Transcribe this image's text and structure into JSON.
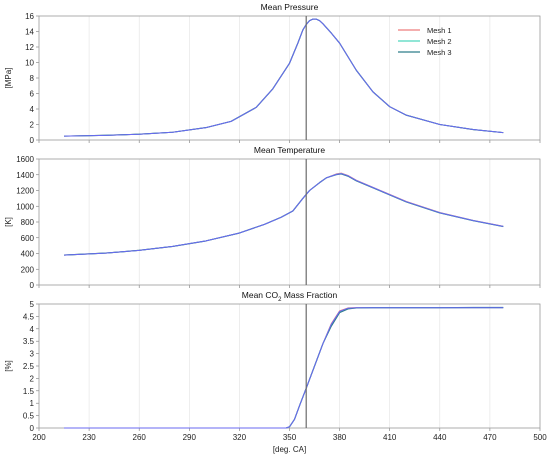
{
  "chart_data": [
    {
      "type": "line",
      "title": "Mean Pressure",
      "ylabel": "[MPa]",
      "xlabel": "",
      "xlim": [
        200,
        500
      ],
      "ylim": [
        0,
        16
      ],
      "xticks": [
        200,
        230,
        260,
        290,
        320,
        350,
        380,
        410,
        440,
        470,
        500
      ],
      "yticks": [
        0,
        2,
        4,
        6,
        8,
        10,
        12,
        14,
        16
      ],
      "ytick_labels": [
        "0",
        "2",
        "4",
        "6",
        "8",
        "10",
        "12",
        "14",
        "16"
      ],
      "show_xtick_labels": false,
      "grid_x": true,
      "grid_y": false,
      "vline": 360,
      "legend": {
        "position": "top-right",
        "entries": [
          "Mesh 1",
          "Mesh 2",
          "Mesh 3"
        ]
      },
      "series": [
        {
          "name": "Mesh 1",
          "color": "#ee7d7d",
          "x": [
            215,
            240,
            260,
            280,
            300,
            315,
            330,
            340,
            350,
            355,
            358,
            360,
            362,
            364,
            366,
            368,
            370,
            375,
            380,
            390,
            400,
            410,
            420,
            440,
            460,
            478
          ],
          "y": [
            0.5,
            0.6,
            0.75,
            1.0,
            1.6,
            2.4,
            4.2,
            6.6,
            9.9,
            12.5,
            14.2,
            14.9,
            15.4,
            15.6,
            15.6,
            15.4,
            15.0,
            13.8,
            12.5,
            9.0,
            6.2,
            4.3,
            3.2,
            2.0,
            1.35,
            0.95
          ]
        },
        {
          "name": "Mesh 2",
          "color": "#4fd6bd",
          "x": [
            215,
            240,
            260,
            280,
            300,
            315,
            330,
            340,
            350,
            355,
            358,
            360,
            362,
            364,
            366,
            368,
            370,
            375,
            380,
            390,
            400,
            410,
            420,
            440,
            460,
            478
          ],
          "y": [
            0.5,
            0.6,
            0.75,
            1.0,
            1.6,
            2.4,
            4.2,
            6.6,
            9.9,
            12.5,
            14.2,
            14.9,
            15.4,
            15.6,
            15.6,
            15.4,
            15.0,
            13.8,
            12.5,
            9.0,
            6.2,
            4.3,
            3.2,
            2.0,
            1.35,
            0.95
          ]
        },
        {
          "name": "Mesh 3",
          "color": "#2e7d8a",
          "x": [
            215,
            240,
            260,
            280,
            300,
            315,
            330,
            340,
            350,
            355,
            358,
            360,
            362,
            364,
            366,
            368,
            370,
            375,
            380,
            390,
            400,
            410,
            420,
            440,
            460,
            478
          ],
          "y": [
            0.5,
            0.6,
            0.75,
            1.0,
            1.6,
            2.4,
            4.2,
            6.6,
            9.9,
            12.5,
            14.2,
            14.9,
            15.4,
            15.6,
            15.6,
            15.4,
            15.0,
            13.8,
            12.5,
            9.0,
            6.2,
            4.3,
            3.2,
            2.0,
            1.35,
            0.95
          ]
        },
        {
          "name": "",
          "color": "#6a6af2",
          "x": [
            215,
            240,
            260,
            280,
            300,
            315,
            330,
            340,
            350,
            355,
            358,
            360,
            362,
            364,
            366,
            368,
            370,
            375,
            380,
            390,
            400,
            410,
            420,
            440,
            460,
            478
          ],
          "y": [
            0.5,
            0.6,
            0.75,
            1.0,
            1.6,
            2.4,
            4.2,
            6.6,
            9.9,
            12.5,
            14.2,
            14.9,
            15.4,
            15.6,
            15.6,
            15.4,
            15.0,
            13.8,
            12.5,
            9.0,
            6.2,
            4.3,
            3.2,
            2.0,
            1.35,
            0.95
          ]
        }
      ]
    },
    {
      "type": "line",
      "title": "Mean Temperature",
      "ylabel": "[K]",
      "xlabel": "",
      "xlim": [
        200,
        500
      ],
      "ylim": [
        0,
        1600
      ],
      "xticks": [
        200,
        230,
        260,
        290,
        320,
        350,
        380,
        410,
        440,
        470,
        500
      ],
      "yticks": [
        0,
        200,
        400,
        600,
        800,
        1000,
        1200,
        1400,
        1600
      ],
      "ytick_labels": [
        "0",
        "200",
        "400",
        "600",
        "800",
        "1000",
        "1200",
        "1400",
        "1600"
      ],
      "show_xtick_labels": false,
      "grid_x": true,
      "grid_y": false,
      "vline": 360,
      "series": [
        {
          "name": "Mesh 1",
          "color": "#ee7d7d",
          "x": [
            215,
            240,
            260,
            280,
            300,
            320,
            335,
            345,
            352,
            358,
            362,
            368,
            372,
            378,
            381,
            385,
            390,
            400,
            420,
            440,
            460,
            478
          ],
          "y": [
            380,
            405,
            440,
            490,
            560,
            660,
            770,
            860,
            940,
            1100,
            1200,
            1300,
            1360,
            1410,
            1420,
            1390,
            1330,
            1240,
            1060,
            920,
            820,
            745
          ]
        },
        {
          "name": "Mesh 2",
          "color": "#4fd6bd",
          "x": [
            215,
            240,
            260,
            280,
            300,
            320,
            335,
            345,
            352,
            358,
            362,
            368,
            372,
            378,
            381,
            385,
            390,
            400,
            420,
            440,
            460,
            478
          ],
          "y": [
            380,
            405,
            440,
            490,
            560,
            660,
            770,
            860,
            940,
            1100,
            1200,
            1300,
            1360,
            1405,
            1415,
            1385,
            1325,
            1236,
            1056,
            917,
            818,
            743
          ]
        },
        {
          "name": "Mesh 3",
          "color": "#2e7d8a",
          "x": [
            215,
            240,
            260,
            280,
            300,
            320,
            335,
            345,
            352,
            358,
            362,
            368,
            372,
            378,
            381,
            385,
            390,
            400,
            420,
            440,
            460,
            478
          ],
          "y": [
            380,
            405,
            440,
            490,
            560,
            660,
            770,
            860,
            940,
            1100,
            1200,
            1300,
            1360,
            1400,
            1410,
            1382,
            1322,
            1233,
            1054,
            915,
            816,
            742
          ]
        },
        {
          "name": "",
          "color": "#6a6af2",
          "x": [
            215,
            240,
            260,
            280,
            300,
            320,
            335,
            345,
            352,
            358,
            362,
            368,
            372,
            378,
            381,
            385,
            390,
            400,
            420,
            440,
            460,
            478
          ],
          "y": [
            380,
            405,
            440,
            490,
            560,
            660,
            770,
            860,
            940,
            1100,
            1200,
            1300,
            1360,
            1405,
            1415,
            1388,
            1328,
            1238,
            1058,
            918,
            819,
            744
          ]
        }
      ]
    },
    {
      "type": "line",
      "title": "Mean CO2 Mass Fraction",
      "title_parts": [
        "Mean CO",
        "2",
        " Mass Fraction"
      ],
      "ylabel": "[%]",
      "xlabel": "[deg. CA]",
      "xlim": [
        200,
        500
      ],
      "ylim": [
        0,
        5
      ],
      "xticks": [
        200,
        230,
        260,
        290,
        320,
        350,
        380,
        410,
        440,
        470,
        500
      ],
      "yticks": [
        0,
        0.5,
        1,
        1.5,
        2,
        2.5,
        3,
        3.5,
        4,
        4.5,
        5
      ],
      "ytick_labels": [
        "0",
        "0.5",
        "1",
        "1.5",
        "2",
        "2.5",
        "3",
        "3.5",
        "4",
        "4.5",
        "5"
      ],
      "show_xtick_labels": true,
      "grid_x": true,
      "grid_y": false,
      "vline": 360,
      "series": [
        {
          "name": "Mesh 1",
          "color": "#ee7d7d",
          "x": [
            215,
            300,
            348,
            350,
            353,
            356,
            360,
            365,
            370,
            375,
            380,
            385,
            390,
            400,
            420,
            440,
            460,
            478
          ],
          "y": [
            0,
            0,
            0,
            0.05,
            0.35,
            0.9,
            1.6,
            2.5,
            3.4,
            4.2,
            4.72,
            4.84,
            4.85,
            4.85,
            4.85,
            4.85,
            4.85,
            4.85
          ]
        },
        {
          "name": "Mesh 2",
          "color": "#4fd6bd",
          "x": [
            215,
            300,
            348,
            350,
            353,
            356,
            360,
            365,
            370,
            375,
            380,
            385,
            390,
            400,
            420,
            440,
            460,
            478
          ],
          "y": [
            0,
            0,
            0,
            0.05,
            0.35,
            0.9,
            1.6,
            2.5,
            3.4,
            4.15,
            4.68,
            4.82,
            4.84,
            4.85,
            4.85,
            4.85,
            4.85,
            4.85
          ]
        },
        {
          "name": "Mesh 3",
          "color": "#2e7d8a",
          "x": [
            215,
            300,
            348,
            350,
            353,
            356,
            360,
            365,
            370,
            375,
            380,
            385,
            390,
            400,
            420,
            440,
            460,
            478
          ],
          "y": [
            0,
            0,
            0,
            0.05,
            0.35,
            0.9,
            1.6,
            2.5,
            3.4,
            4.1,
            4.65,
            4.8,
            4.84,
            4.85,
            4.85,
            4.85,
            4.86,
            4.86
          ]
        },
        {
          "name": "",
          "color": "#6a6af2",
          "x": [
            215,
            300,
            348,
            350,
            353,
            356,
            360,
            365,
            370,
            375,
            380,
            385,
            390,
            400,
            420,
            440,
            460,
            478
          ],
          "y": [
            0,
            0,
            0,
            0.05,
            0.35,
            0.9,
            1.6,
            2.5,
            3.4,
            4.18,
            4.7,
            4.83,
            4.85,
            4.85,
            4.85,
            4.85,
            4.85,
            4.85
          ]
        }
      ]
    }
  ]
}
